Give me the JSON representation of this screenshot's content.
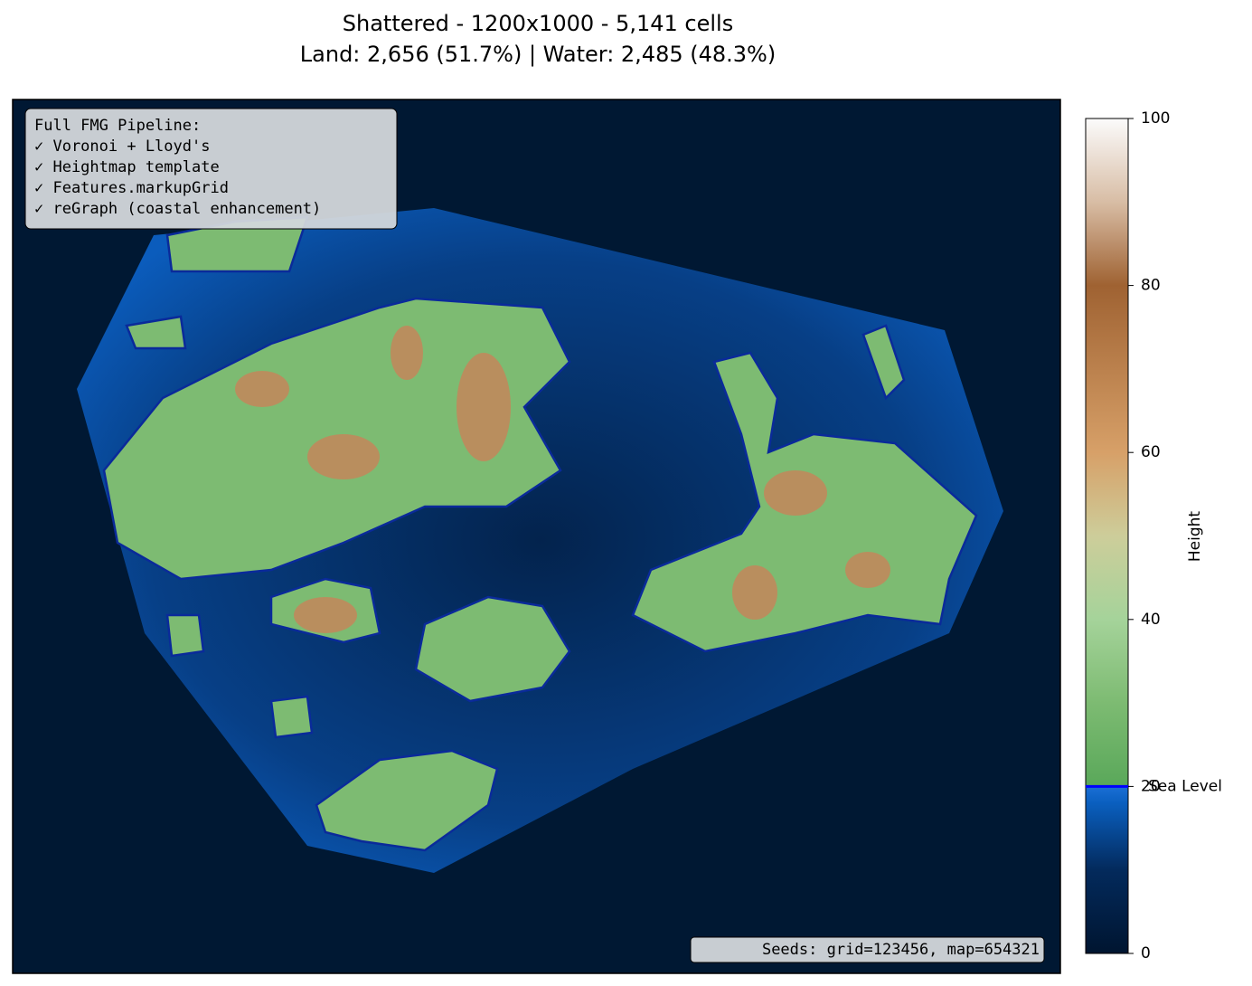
{
  "chart_data": {
    "type": "heightmap",
    "title": "Shattered - 1200x1000 - 5,141 cells",
    "subtitle": "Land: 2,656 (51.7%) | Water: 2,485 (48.3%)",
    "annotation": [
      "Full FMG Pipeline:",
      "✓ Voronoi + Lloyd's",
      "✓ Heightmap template",
      "✓ Features.markupGrid",
      "✓ reGraph (coastal enhancement)"
    ],
    "footnote": "Seeds: grid=123456, map=654321",
    "colorbar_label": "Height",
    "ylim": [
      0,
      100
    ],
    "yticks": [
      0,
      20,
      40,
      60,
      80,
      100
    ],
    "sea_level": {
      "value": 20,
      "label": "Sea Level",
      "color": "#0000ff"
    }
  }
}
